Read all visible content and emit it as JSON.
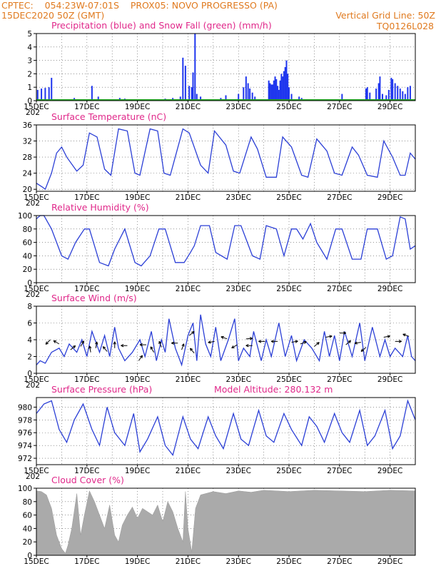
{
  "header": {
    "line1_left": "CPTEC:    054:23W-07:01S    PROX05: NOVO PROGRESSO (PA)",
    "line2_left": "15DEC2020 50Z (GMT)",
    "line2_right": "Vertical Grid Line: 50Z",
    "line3_right": "TQ0126L028"
  },
  "x_axis": {
    "days": 15,
    "tick_labels": [
      "15DEC",
      "17DEC",
      "19DEC",
      "21DEC",
      "23DEC",
      "25DEC",
      "27DEC",
      "29DEC"
    ],
    "tick_days": [
      0,
      2,
      4,
      6,
      8,
      10,
      12,
      14
    ],
    "year_stub": "202"
  },
  "colors": {
    "curve": "#2b3fd6",
    "precip": "#1f36ee",
    "snow": "#22aa22",
    "cloud": "#aaaaaa",
    "title": "#e0288a",
    "header": "#e07a1f"
  },
  "chart_data": [
    {
      "id": "precip",
      "type": "bar",
      "title": "Precipitation (blue) and Snow Fall (green) (mm/h)",
      "ylim": [
        0,
        5
      ],
      "yticks": [
        0,
        1,
        2,
        3,
        4,
        5
      ],
      "grid": true,
      "series": [
        {
          "name": "Precipitation",
          "points": [
            [
              0.05,
              0.8
            ],
            [
              0.2,
              0.9
            ],
            [
              0.35,
              0.95
            ],
            [
              0.5,
              1.0
            ],
            [
              0.6,
              1.7
            ],
            [
              1.5,
              0.2
            ],
            [
              2.2,
              1.1
            ],
            [
              2.45,
              0.3
            ],
            [
              3.3,
              0.2
            ],
            [
              3.5,
              0.15
            ],
            [
              5.1,
              0.15
            ],
            [
              5.4,
              0.2
            ],
            [
              5.7,
              0.3
            ],
            [
              5.8,
              3.2
            ],
            [
              5.9,
              2.6
            ],
            [
              6.05,
              1.1
            ],
            [
              6.15,
              1.0
            ],
            [
              6.2,
              2.1
            ],
            [
              6.28,
              5.0
            ],
            [
              6.35,
              0.5
            ],
            [
              6.5,
              0.3
            ],
            [
              7.3,
              0.2
            ],
            [
              7.5,
              0.4
            ],
            [
              8.0,
              0.5
            ],
            [
              8.2,
              1.0
            ],
            [
              8.3,
              1.8
            ],
            [
              8.38,
              1.3
            ],
            [
              8.45,
              0.9
            ],
            [
              8.55,
              0.6
            ],
            [
              8.65,
              0.3
            ],
            [
              9.2,
              1.5
            ],
            [
              9.25,
              1.3
            ],
            [
              9.3,
              1.2
            ],
            [
              9.35,
              1.2
            ],
            [
              9.4,
              1.5
            ],
            [
              9.45,
              1.8
            ],
            [
              9.5,
              1.6
            ],
            [
              9.55,
              1.1
            ],
            [
              9.6,
              0.8
            ],
            [
              9.65,
              1.5
            ],
            [
              9.7,
              2.0
            ],
            [
              9.75,
              1.8
            ],
            [
              9.8,
              2.2
            ],
            [
              9.85,
              2.5
            ],
            [
              9.9,
              3.0
            ],
            [
              9.95,
              2.0
            ],
            [
              10.0,
              1.0
            ],
            [
              10.1,
              0.5
            ],
            [
              10.4,
              0.3
            ],
            [
              10.5,
              0.2
            ],
            [
              12.1,
              0.5
            ],
            [
              13.05,
              0.9
            ],
            [
              13.1,
              1.0
            ],
            [
              13.2,
              0.6
            ],
            [
              13.45,
              0.9
            ],
            [
              13.55,
              1.3
            ],
            [
              13.6,
              1.8
            ],
            [
              13.7,
              0.5
            ],
            [
              13.85,
              0.4
            ],
            [
              13.95,
              0.8
            ],
            [
              14.05,
              1.7
            ],
            [
              14.1,
              1.6
            ],
            [
              14.2,
              1.3
            ],
            [
              14.3,
              1.1
            ],
            [
              14.4,
              0.9
            ],
            [
              14.5,
              0.7
            ],
            [
              14.6,
              0.5
            ],
            [
              14.7,
              1.0
            ],
            [
              14.8,
              1.1
            ]
          ]
        },
        {
          "name": "Snow Fall",
          "points": []
        }
      ]
    },
    {
      "id": "temp",
      "type": "line",
      "title": "Surface Temperature (nC)",
      "ylim": [
        19.5,
        36
      ],
      "yticks": [
        20,
        24,
        28,
        32,
        36
      ],
      "grid": true,
      "x": [
        0,
        0.25,
        0.35,
        0.6,
        0.8,
        1.0,
        1.2,
        1.6,
        1.85,
        2.1,
        2.4,
        2.7,
        2.95,
        3.25,
        3.6,
        3.9,
        4.1,
        4.5,
        4.8,
        5.05,
        5.3,
        5.8,
        6.05,
        6.5,
        6.8,
        7.05,
        7.5,
        7.8,
        8.05,
        8.5,
        8.75,
        9.1,
        9.5,
        9.75,
        10.1,
        10.5,
        10.75,
        11.1,
        11.5,
        11.8,
        12.1,
        12.5,
        12.75,
        13.1,
        13.5,
        13.75,
        14.1,
        14.4,
        14.6,
        14.8,
        15.0
      ],
      "values": [
        21.5,
        20.5,
        20.0,
        24.0,
        29.0,
        30.5,
        28.0,
        24.5,
        26.0,
        34.0,
        33.0,
        25.0,
        23.5,
        35.0,
        34.5,
        24.0,
        23.5,
        35.0,
        34.5,
        24.0,
        23.5,
        35.0,
        34.0,
        26.0,
        24.0,
        34.5,
        31.0,
        24.5,
        24.0,
        33.0,
        30.0,
        23.0,
        23.0,
        33.0,
        30.5,
        23.5,
        23.0,
        32.5,
        29.5,
        24.0,
        23.5,
        30.5,
        28.5,
        23.5,
        23.0,
        32.0,
        28.0,
        23.5,
        23.5,
        29.0,
        27.5
      ]
    },
    {
      "id": "rh",
      "type": "line",
      "title": "Relative Humidity (%)",
      "ylim": [
        0,
        100
      ],
      "yticks": [
        0,
        20,
        40,
        60,
        80,
        100
      ],
      "grid": true,
      "x": [
        0,
        0.15,
        0.3,
        0.6,
        1.0,
        1.25,
        1.55,
        1.9,
        2.1,
        2.5,
        2.85,
        3.1,
        3.5,
        3.9,
        4.15,
        4.5,
        4.85,
        5.1,
        5.5,
        5.85,
        6.1,
        6.25,
        6.5,
        6.85,
        7.1,
        7.55,
        7.85,
        8.1,
        8.55,
        8.85,
        9.1,
        9.5,
        9.8,
        10.1,
        10.3,
        10.55,
        10.85,
        11.1,
        11.5,
        11.85,
        12.1,
        12.5,
        12.85,
        13.1,
        13.5,
        13.85,
        14.1,
        14.4,
        14.6,
        14.8,
        15.0
      ],
      "values": [
        95,
        100,
        100,
        80,
        40,
        35,
        60,
        80,
        80,
        30,
        25,
        50,
        80,
        30,
        25,
        40,
        80,
        80,
        30,
        30,
        45,
        55,
        85,
        85,
        45,
        35,
        85,
        85,
        40,
        35,
        85,
        80,
        40,
        80,
        80,
        65,
        88,
        60,
        35,
        80,
        80,
        35,
        35,
        80,
        80,
        35,
        40,
        98,
        95,
        50,
        55
      ]
    },
    {
      "id": "wind",
      "type": "line",
      "title": "Surface Wind (m/s)",
      "ylim": [
        0,
        8
      ],
      "yticks": [
        0,
        2,
        4,
        6,
        8
      ],
      "grid": true,
      "x": [
        0,
        0.15,
        0.35,
        0.6,
        0.9,
        1.1,
        1.3,
        1.6,
        1.8,
        2.0,
        2.2,
        2.5,
        2.7,
        2.9,
        3.1,
        3.25,
        3.5,
        3.8,
        4.1,
        4.3,
        4.55,
        4.75,
        4.95,
        5.1,
        5.25,
        5.5,
        5.75,
        6.0,
        6.2,
        6.35,
        6.5,
        6.7,
        6.9,
        7.1,
        7.3,
        7.6,
        7.85,
        8.0,
        8.2,
        8.45,
        8.6,
        8.9,
        9.1,
        9.3,
        9.6,
        9.85,
        10.1,
        10.3,
        10.6,
        10.9,
        11.2,
        11.4,
        11.6,
        11.8,
        12.0,
        12.2,
        12.5,
        12.8,
        13.0,
        13.3,
        13.6,
        13.8,
        14.0,
        14.2,
        14.5,
        14.7,
        14.85,
        15.0
      ],
      "values": [
        1.0,
        1.5,
        1.2,
        2.5,
        3.0,
        2.0,
        3.5,
        2.5,
        4.0,
        2.0,
        5.0,
        2.5,
        4.5,
        2.0,
        5.5,
        3.0,
        1.5,
        2.5,
        4.0,
        2.0,
        5.0,
        1.5,
        4.0,
        2.5,
        6.5,
        3.0,
        1.0,
        4.5,
        6.0,
        1.5,
        7.0,
        3.5,
        2.0,
        5.5,
        1.5,
        4.0,
        6.5,
        1.5,
        3.0,
        2.0,
        5.0,
        1.5,
        4.0,
        2.0,
        6.0,
        2.0,
        4.5,
        1.5,
        4.0,
        3.0,
        1.5,
        5.0,
        2.0,
        4.5,
        1.5,
        5.0,
        2.0,
        6.0,
        1.5,
        5.5,
        2.0,
        4.0,
        2.0,
        3.0,
        2.0,
        4.5,
        2.0,
        1.5
      ],
      "arrows": [
        [
          0.55,
          4.0,
          225
        ],
        [
          0.9,
          3.5,
          150
        ],
        [
          1.35,
          2.8,
          40
        ],
        [
          1.75,
          3.2,
          60
        ],
        [
          2.15,
          2.5,
          100
        ],
        [
          2.35,
          3.0,
          80
        ],
        [
          2.8,
          2.6,
          130
        ],
        [
          3.1,
          3.0,
          90
        ],
        [
          3.6,
          3.3,
          180
        ],
        [
          4.05,
          1.5,
          55
        ],
        [
          4.35,
          3.4,
          180
        ],
        [
          4.65,
          2.5,
          120
        ],
        [
          4.95,
          3.1,
          110
        ],
        [
          5.6,
          3.6,
          180
        ],
        [
          5.75,
          2.8,
          70
        ],
        [
          6.05,
          4.5,
          40
        ],
        [
          6.25,
          2.4,
          130
        ],
        [
          7.05,
          3.8,
          190
        ],
        [
          7.55,
          4.1,
          160
        ],
        [
          7.95,
          3.4,
          210
        ],
        [
          8.3,
          4.1,
          5
        ],
        [
          8.55,
          3.3,
          180
        ],
        [
          9.05,
          3.8,
          180
        ],
        [
          9.55,
          3.8,
          180
        ],
        [
          10.1,
          3.7,
          10
        ],
        [
          10.45,
          3.5,
          20
        ],
        [
          11.0,
          3.2,
          40
        ],
        [
          11.45,
          4.3,
          10
        ],
        [
          12.0,
          4.8,
          0
        ],
        [
          12.25,
          3.4,
          40
        ],
        [
          12.85,
          3.7,
          190
        ],
        [
          13.05,
          3.1,
          220
        ],
        [
          13.75,
          4.3,
          10
        ],
        [
          14.2,
          3.8,
          0
        ],
        [
          14.75,
          4.4,
          160
        ]
      ]
    },
    {
      "id": "pressure",
      "type": "line",
      "title": "Surface Pressure (hPa)",
      "annotation": "Model Altitude: 280.132 m",
      "ylim": [
        971,
        981.5
      ],
      "yticks": [
        972,
        974,
        976,
        978,
        980
      ],
      "grid": true,
      "x": [
        0,
        0.3,
        0.6,
        0.9,
        1.2,
        1.5,
        1.85,
        2.2,
        2.5,
        2.8,
        3.1,
        3.5,
        3.85,
        4.1,
        4.4,
        4.8,
        5.1,
        5.4,
        5.8,
        6.1,
        6.4,
        6.8,
        7.1,
        7.4,
        7.8,
        8.1,
        8.4,
        8.8,
        9.1,
        9.4,
        9.8,
        10.1,
        10.5,
        10.8,
        11.1,
        11.4,
        11.8,
        12.1,
        12.4,
        12.8,
        13.1,
        13.4,
        13.8,
        14.1,
        14.4,
        14.7,
        15.0
      ],
      "values": [
        979.0,
        980.5,
        981.0,
        976.5,
        974.5,
        978.0,
        980.5,
        976.5,
        974.0,
        980.0,
        976.0,
        974.0,
        979.0,
        973.0,
        975.0,
        978.5,
        974.0,
        972.5,
        978.5,
        975.0,
        973.5,
        978.5,
        975.5,
        973.5,
        979.0,
        975.0,
        974.0,
        979.5,
        975.5,
        974.5,
        979.0,
        976.5,
        974.0,
        978.5,
        977.0,
        974.5,
        979.0,
        976.0,
        974.5,
        979.5,
        974.0,
        975.5,
        979.5,
        973.5,
        975.5,
        981.0,
        978.0
      ]
    },
    {
      "id": "cloud",
      "type": "area",
      "title": "Cloud Cover (%)",
      "ylim": [
        0,
        100
      ],
      "yticks": [
        0,
        20,
        40,
        60,
        80,
        100
      ],
      "grid": true,
      "x": [
        0,
        0.2,
        0.4,
        0.6,
        0.8,
        1.0,
        1.15,
        1.25,
        1.4,
        1.6,
        1.75,
        1.9,
        2.1,
        2.3,
        2.5,
        2.7,
        2.9,
        3.1,
        3.25,
        3.4,
        3.6,
        3.8,
        4.0,
        4.2,
        4.4,
        4.6,
        4.8,
        5.0,
        5.2,
        5.4,
        5.6,
        5.8,
        5.9,
        6.0,
        6.15,
        6.3,
        6.5,
        7.0,
        7.5,
        8.0,
        8.5,
        9.0,
        9.5,
        10.0,
        11.0,
        12.0,
        13.0,
        14.0,
        15.0
      ],
      "values": [
        96,
        95,
        90,
        70,
        30,
        10,
        3,
        15,
        40,
        92,
        30,
        60,
        96,
        80,
        60,
        40,
        75,
        30,
        20,
        45,
        60,
        72,
        55,
        70,
        65,
        60,
        75,
        50,
        80,
        65,
        40,
        20,
        95,
        40,
        5,
        70,
        90,
        95,
        92,
        96,
        94,
        97,
        96,
        95,
        97,
        96,
        95,
        97,
        96
      ]
    }
  ]
}
